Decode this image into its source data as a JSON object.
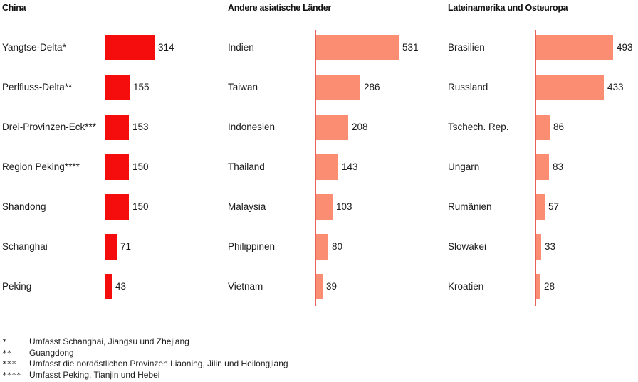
{
  "chart_data": [
    {
      "type": "bar",
      "orientation": "horizontal",
      "title": "China",
      "color": "#f50c0c",
      "categories": [
        "Yangtse-Delta*",
        "Perlfluss-Delta**",
        "Drei-Provinzen-Eck***",
        "Region Peking****",
        "Shandong",
        "Schanghai",
        "Peking"
      ],
      "values": [
        314,
        155,
        153,
        150,
        150,
        71,
        43
      ],
      "data_labels": [
        "314",
        "155",
        "153",
        "150",
        "150",
        "71",
        "43"
      ],
      "xlim": [
        0,
        531
      ]
    },
    {
      "type": "bar",
      "orientation": "horizontal",
      "title": "Andere asiatische Länder",
      "color": "#fb8d72",
      "categories": [
        "Indien",
        "Taiwan",
        "Indonesien",
        "Thailand",
        "Malaysia",
        "Philippinen",
        "Vietnam"
      ],
      "values": [
        531,
        286,
        208,
        143,
        103,
        80,
        39
      ],
      "data_labels": [
        "531",
        "286",
        "208",
        "143",
        "103",
        "80",
        "39"
      ],
      "xlim": [
        0,
        531
      ]
    },
    {
      "type": "bar",
      "orientation": "horizontal",
      "title": "Lateinamerika und Osteuropa",
      "color": "#fb8d72",
      "categories": [
        "Brasilien",
        "Russland",
        "Tschech. Rep.",
        "Ungarn",
        "Rumänien",
        "Slowakei",
        "Kroatien"
      ],
      "values": [
        493,
        433,
        86,
        83,
        57,
        33,
        28
      ],
      "data_labels": [
        "493",
        "433",
        "86",
        "83",
        "57",
        "33",
        "28"
      ],
      "xlim": [
        0,
        531
      ]
    }
  ],
  "axis_color": "#e8635a",
  "footnotes": [
    {
      "mark": "*",
      "text": "Umfasst Schanghai, Jiangsu und Zhejiang"
    },
    {
      "mark": "**",
      "text": "Guangdong"
    },
    {
      "mark": "***",
      "text": "Umfasst die nordöstlichen Provinzen Liaoning, Jilin und Heilongjiang"
    },
    {
      "mark": "****",
      "text": "Umfasst Peking, Tianjin und Hebei"
    }
  ]
}
